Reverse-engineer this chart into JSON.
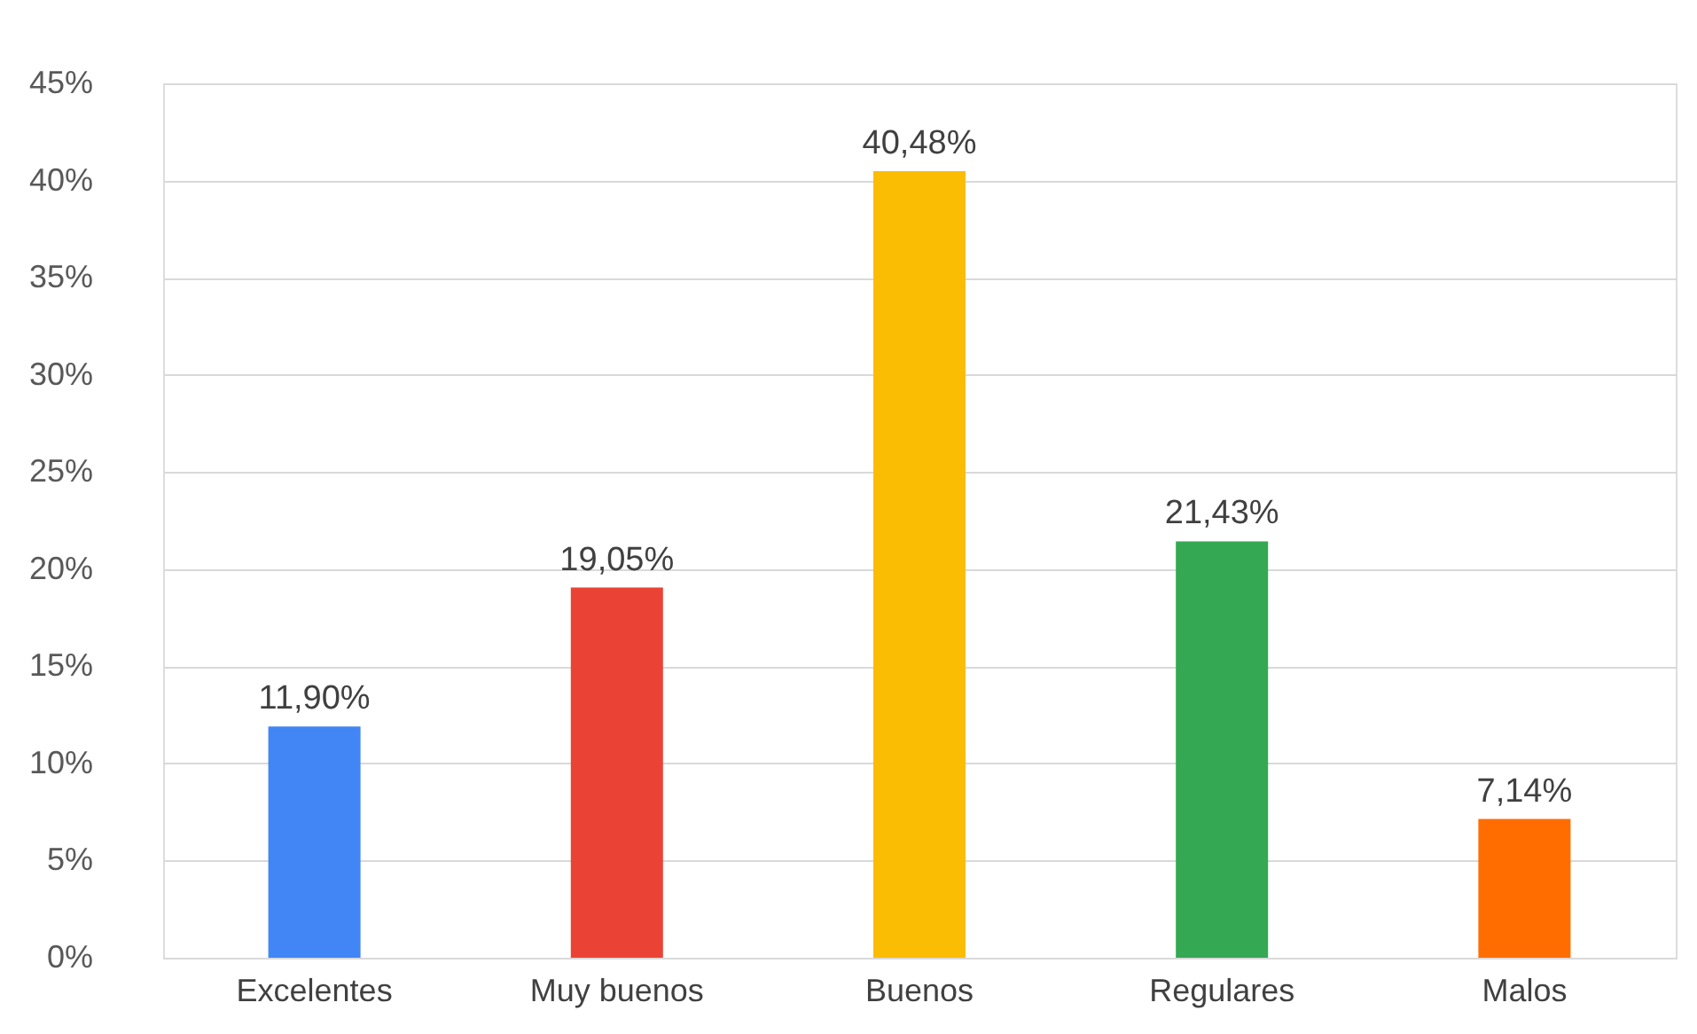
{
  "chart_data": {
    "type": "bar",
    "categories": [
      "Excelentes",
      "Muy buenos",
      "Buenos",
      "Regulares",
      "Malos"
    ],
    "values": [
      11.9,
      19.05,
      40.48,
      21.43,
      7.14
    ],
    "colors": [
      "#4285f4",
      "#ea4335",
      "#fbbc04",
      "#34a853",
      "#ff6d01"
    ],
    "value_labels": [
      "11,90%",
      "19,05%",
      "40,48%",
      "21,43%",
      "7,14%"
    ],
    "ylim": [
      0,
      45
    ],
    "yticks": [
      {
        "value": 0,
        "label": "0%"
      },
      {
        "value": 5,
        "label": "5%"
      },
      {
        "value": 10,
        "label": "10%"
      },
      {
        "value": 15,
        "label": "15%"
      },
      {
        "value": 20,
        "label": "20%"
      },
      {
        "value": 25,
        "label": "25%"
      },
      {
        "value": 30,
        "label": "30%"
      },
      {
        "value": 35,
        "label": "35%"
      },
      {
        "value": 40,
        "label": "40%"
      },
      {
        "value": 45,
        "label": "45%"
      }
    ],
    "grid": "y"
  }
}
